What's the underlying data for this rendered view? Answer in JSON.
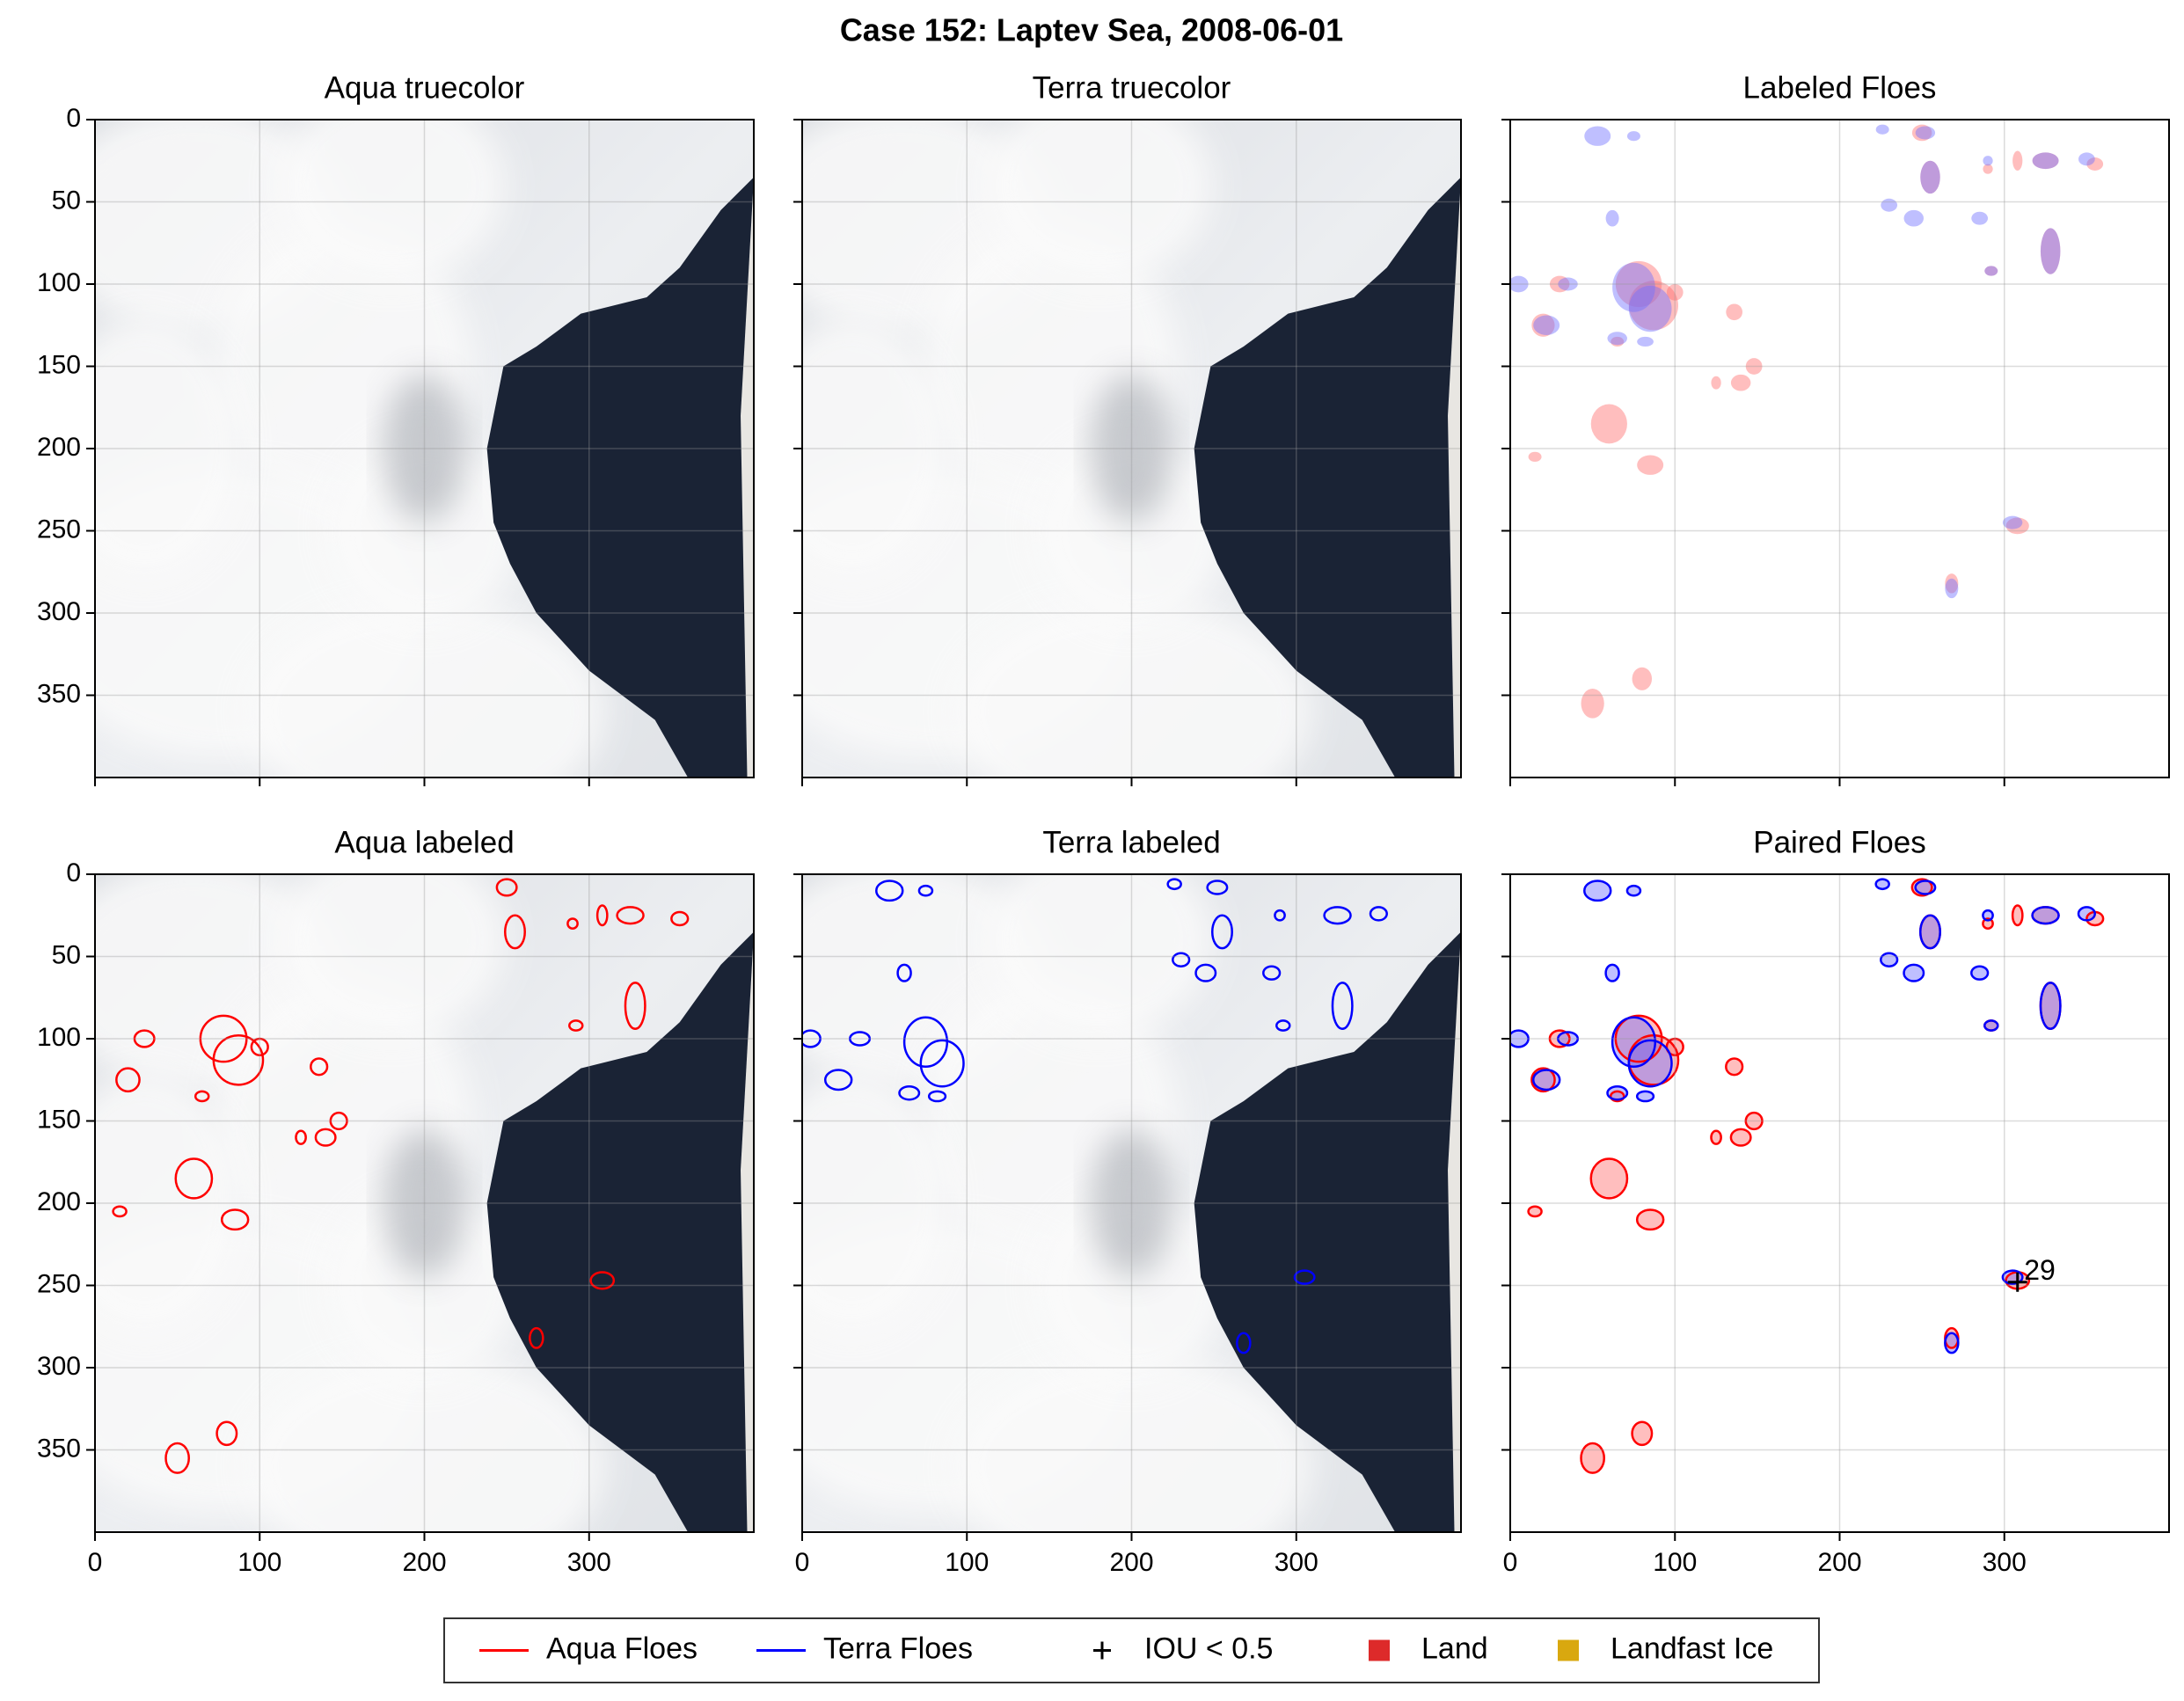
{
  "title": "Case 152: Laptev Sea, 2008-06-01",
  "chart_data": [
    {
      "type": "image",
      "title": "Aqua truecolor",
      "background": "truecolor",
      "outlines": [],
      "fills": false,
      "xlim": [
        0,
        400
      ],
      "ylim": [
        0,
        400
      ],
      "y_inverted": true,
      "xticks": [
        0,
        100,
        200,
        300
      ],
      "yticks": [
        0,
        50,
        100,
        150,
        200,
        250,
        300,
        350
      ],
      "show_xticklabels": false,
      "show_yticklabels": true,
      "grid": true
    },
    {
      "type": "image",
      "title": "Terra truecolor",
      "background": "truecolor",
      "outlines": [],
      "fills": false,
      "xlim": [
        0,
        400
      ],
      "ylim": [
        0,
        400
      ],
      "y_inverted": true,
      "xticks": [
        0,
        100,
        200,
        300
      ],
      "yticks": [
        0,
        50,
        100,
        150,
        200,
        250,
        300,
        350
      ],
      "show_xticklabels": false,
      "show_yticklabels": false,
      "grid": true
    },
    {
      "type": "image",
      "title": "Labeled Floes",
      "background": "none",
      "outlines": [],
      "fills": true,
      "xlim": [
        0,
        400
      ],
      "ylim": [
        0,
        400
      ],
      "y_inverted": true,
      "xticks": [
        0,
        100,
        200,
        300
      ],
      "yticks": [
        0,
        50,
        100,
        150,
        200,
        250,
        300,
        350
      ],
      "show_xticklabels": false,
      "show_yticklabels": false,
      "grid": true
    },
    {
      "type": "image",
      "title": "Aqua labeled",
      "background": "truecolor",
      "outlines": [
        "#ff0000"
      ],
      "fills": false,
      "xlim": [
        0,
        400
      ],
      "ylim": [
        0,
        400
      ],
      "y_inverted": true,
      "xticks": [
        0,
        100,
        200,
        300
      ],
      "yticks": [
        0,
        50,
        100,
        150,
        200,
        250,
        300,
        350
      ],
      "show_xticklabels": true,
      "show_yticklabels": true,
      "grid": true
    },
    {
      "type": "image",
      "title": "Terra labeled",
      "background": "truecolor",
      "outlines": [
        "#0000ff"
      ],
      "fills": false,
      "xlim": [
        0,
        400
      ],
      "ylim": [
        0,
        400
      ],
      "y_inverted": true,
      "xticks": [
        0,
        100,
        200,
        300
      ],
      "yticks": [
        0,
        50,
        100,
        150,
        200,
        250,
        300,
        350
      ],
      "show_xticklabels": true,
      "show_yticklabels": false,
      "grid": true
    },
    {
      "type": "image",
      "title": "Paired Floes",
      "background": "none",
      "outlines": [
        "#ff0000",
        "#0000ff"
      ],
      "fills": true,
      "xlim": [
        0,
        400
      ],
      "ylim": [
        0,
        400
      ],
      "y_inverted": true,
      "xticks": [
        0,
        100,
        200,
        300
      ],
      "yticks": [
        0,
        50,
        100,
        150,
        200,
        250,
        300,
        350
      ],
      "show_xticklabels": true,
      "show_yticklabels": false,
      "grid": true,
      "annotations": [
        {
          "text": "29",
          "x": 312,
          "y": 242,
          "color": "#ff0000"
        }
      ],
      "iou_markers": {
        "x": [
          308
        ],
        "y": [
          248
        ]
      }
    }
  ],
  "legend": [
    {
      "name": "Aqua Floes",
      "marker": "line",
      "color": "#ff0000"
    },
    {
      "name": "Terra Floes",
      "marker": "line",
      "color": "#0000ff"
    },
    {
      "name": "IOU < 0.5",
      "marker": "plus",
      "color": "#000000"
    },
    {
      "name": "Land",
      "marker": "square",
      "color": "#dd2a2a"
    },
    {
      "name": "Landfast Ice",
      "marker": "square",
      "color": "#d9a80f"
    }
  ]
}
